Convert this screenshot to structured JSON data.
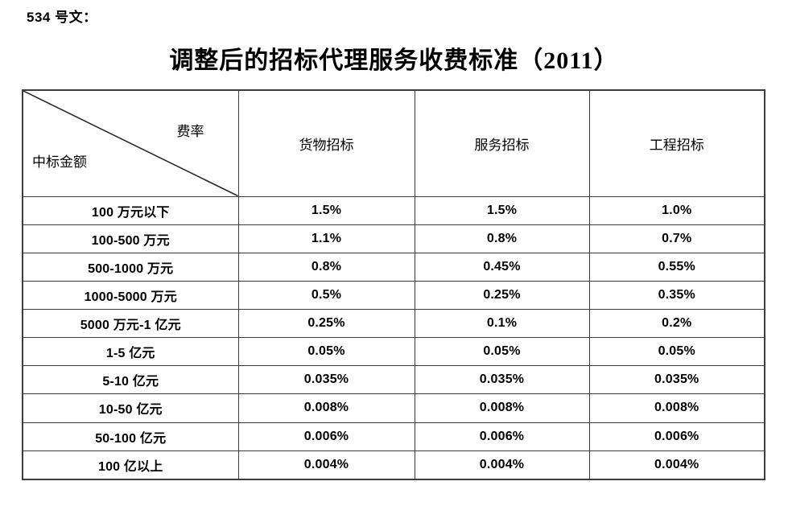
{
  "doc": {
    "ref_label": "534 号文：",
    "title": "调整后的招标代理服务收费标准（2011）"
  },
  "table": {
    "corner": {
      "top_right": "费率",
      "bottom_left": "中标金额"
    },
    "columns": [
      "货物招标",
      "服务招标",
      "工程招标"
    ],
    "rows": [
      {
        "label": "100 万元以下",
        "values": [
          "1.5%",
          "1.5%",
          "1.0%"
        ]
      },
      {
        "label": "100-500 万元",
        "values": [
          "1.1%",
          "0.8%",
          "0.7%"
        ]
      },
      {
        "label": "500-1000 万元",
        "values": [
          "0.8%",
          "0.45%",
          "0.55%"
        ]
      },
      {
        "label": "1000-5000 万元",
        "values": [
          "0.5%",
          "0.25%",
          "0.35%"
        ]
      },
      {
        "label": "5000 万元-1 亿元",
        "values": [
          "0.25%",
          "0.1%",
          "0.2%"
        ]
      },
      {
        "label": "1-5 亿元",
        "values": [
          "0.05%",
          "0.05%",
          "0.05%"
        ]
      },
      {
        "label": "5-10 亿元",
        "values": [
          "0.035%",
          "0.035%",
          "0.035%"
        ]
      },
      {
        "label": "10-50 亿元",
        "values": [
          "0.008%",
          "0.008%",
          "0.008%"
        ]
      },
      {
        "label": "50-100 亿元",
        "values": [
          "0.006%",
          "0.006%",
          "0.006%"
        ]
      },
      {
        "label": "100 亿以上",
        "values": [
          "0.004%",
          "0.004%",
          "0.004%"
        ]
      }
    ],
    "colors": {
      "border": "#3d3d3d",
      "text": "#000000",
      "background": "#ffffff"
    }
  }
}
